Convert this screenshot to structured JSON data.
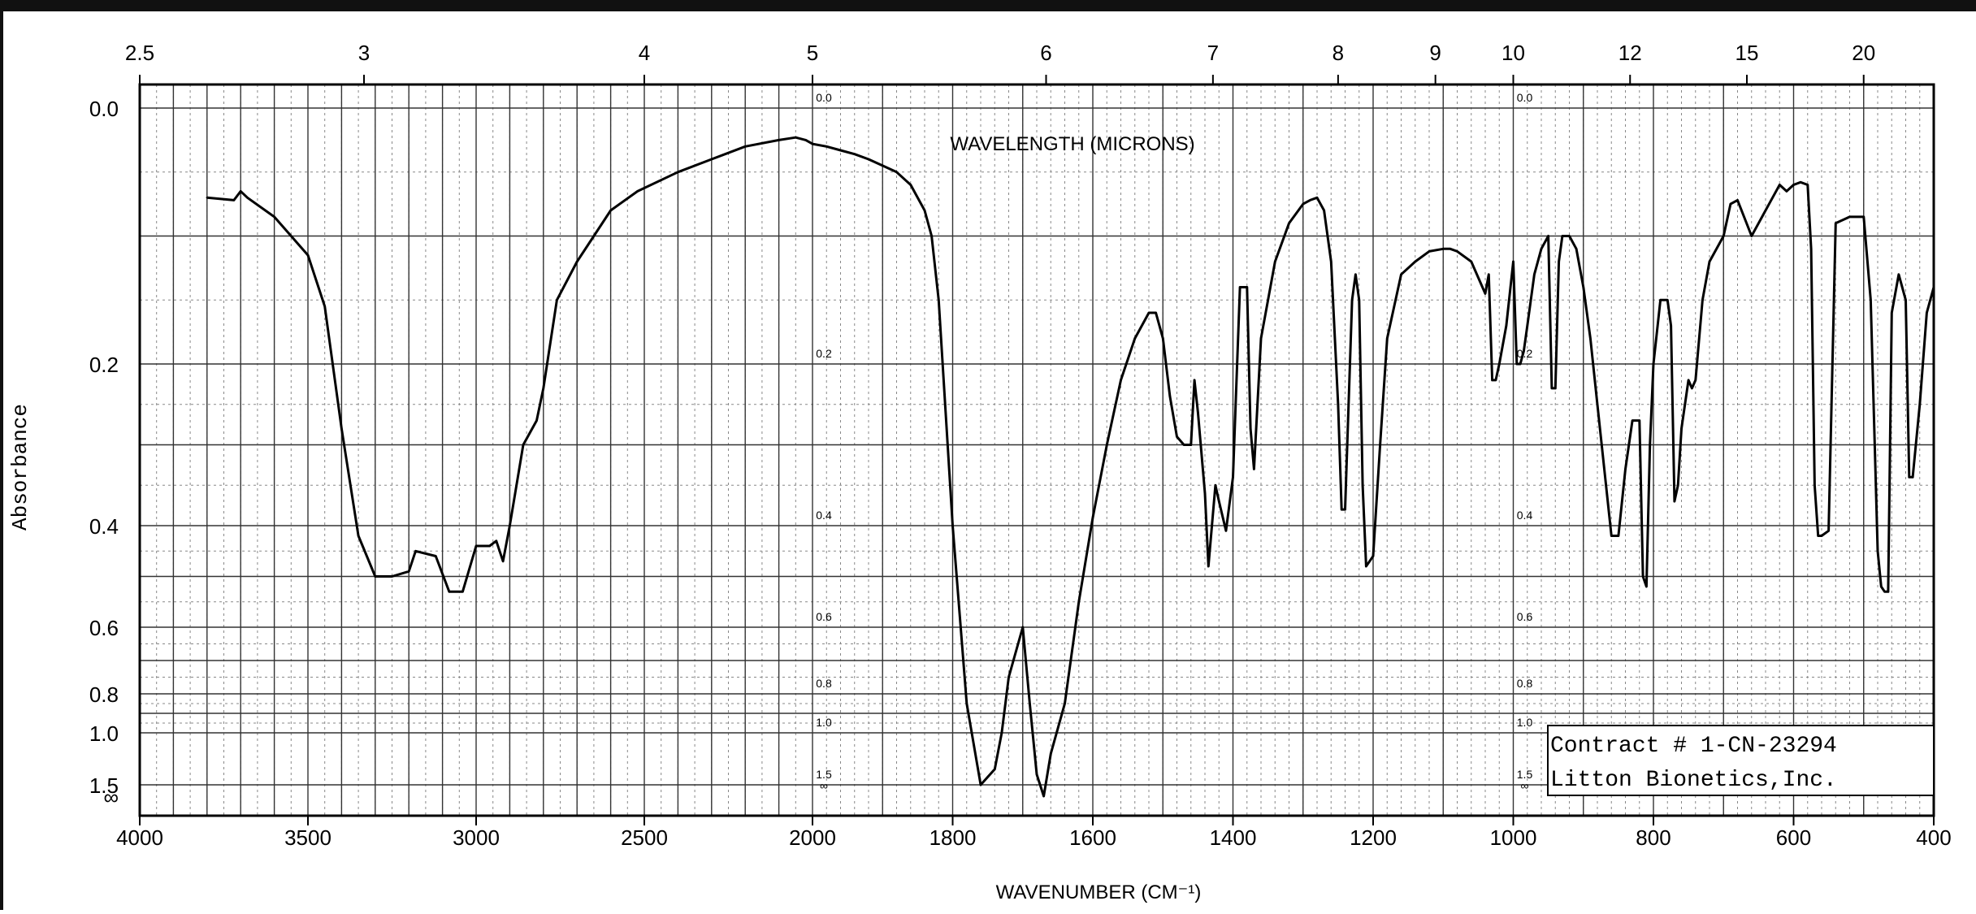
{
  "chart_data": {
    "type": "line",
    "title": "",
    "x_label": "WAVENUMBER (CM⁻¹)",
    "top_axis_label": "WAVELENGTH (MICRONS)",
    "y_label": "Absorbance",
    "x_range": [
      4000,
      400
    ],
    "x_scale": "piecewise-linear (4000–2000, 2000–400)",
    "y_range": [
      0,
      1.6
    ],
    "y_scale": "log10 transmittance",
    "x_tick_labels": [
      "4000",
      "3500",
      "3000",
      "2500",
      "2000",
      "1800",
      "1600",
      "1400",
      "1200",
      "1000",
      "800",
      "600",
      "400"
    ],
    "top_tick_labels": [
      "2.5",
      "3",
      "4",
      "5",
      "6",
      "7",
      "8",
      "9",
      "10",
      "12",
      "15",
      "20"
    ],
    "y_tick_labels": [
      "0.0",
      "0.2",
      "0.4",
      "0.6",
      "0.8",
      "1.0",
      "1.5",
      "∞"
    ],
    "inner_scale_labels": [
      "0.0",
      "0.2",
      "0.4",
      "0.6",
      "0.8",
      "1.0",
      "1.5",
      "∞"
    ],
    "grid": true,
    "annotation": {
      "line1": "Contract # 1-CN-23294",
      "line2": "Litton Bionetics,Inc."
    },
    "series": [
      {
        "x": [
          3800,
          3720,
          3700,
          3680,
          3600,
          3500,
          3450,
          3400,
          3350,
          3300,
          3250,
          3200,
          3180,
          3120,
          3080,
          3040,
          3000,
          2960,
          2940,
          2920,
          2900,
          2860,
          2820,
          2800,
          2760,
          2700,
          2600,
          2520,
          2400,
          2300,
          2200,
          2100,
          2050,
          2020,
          2000,
          1980,
          1960,
          1940,
          1920,
          1900,
          1880,
          1860,
          1840,
          1830,
          1820,
          1800,
          1780,
          1760,
          1740,
          1730,
          1720,
          1700,
          1690,
          1680,
          1670,
          1660,
          1640,
          1620,
          1600,
          1580,
          1560,
          1540,
          1520,
          1510,
          1500,
          1490,
          1480,
          1470,
          1460,
          1455,
          1450,
          1440,
          1435,
          1430,
          1425,
          1420,
          1410,
          1400,
          1390,
          1380,
          1375,
          1370,
          1360,
          1340,
          1320,
          1300,
          1290,
          1280,
          1270,
          1260,
          1250,
          1245,
          1240,
          1235,
          1230,
          1225,
          1220,
          1215,
          1210,
          1205,
          1200,
          1190,
          1180,
          1160,
          1140,
          1120,
          1100,
          1090,
          1080,
          1060,
          1040,
          1035,
          1030,
          1025,
          1020,
          1010,
          1000,
          995,
          990,
          985,
          980,
          970,
          960,
          950,
          945,
          940,
          935,
          930,
          920,
          910,
          900,
          890,
          880,
          860,
          850,
          840,
          830,
          820,
          815,
          810,
          805,
          800,
          790,
          780,
          775,
          770,
          765,
          760,
          750,
          745,
          740,
          730,
          720,
          700,
          690,
          680,
          660,
          640,
          630,
          620,
          610,
          600,
          590,
          580,
          575,
          570,
          565,
          560,
          550,
          540,
          520,
          500,
          490,
          480,
          475,
          470,
          465,
          460,
          450,
          440,
          435,
          430,
          420,
          410,
          400
        ],
        "y": [
          0.07,
          0.072,
          0.065,
          0.07,
          0.085,
          0.115,
          0.155,
          0.28,
          0.42,
          0.5,
          0.5,
          0.49,
          0.45,
          0.46,
          0.53,
          0.53,
          0.44,
          0.44,
          0.43,
          0.47,
          0.4,
          0.3,
          0.27,
          0.23,
          0.15,
          0.12,
          0.08,
          0.065,
          0.05,
          0.04,
          0.03,
          0.025,
          0.023,
          0.025,
          0.028,
          0.03,
          0.033,
          0.036,
          0.04,
          0.045,
          0.05,
          0.06,
          0.08,
          0.1,
          0.15,
          0.4,
          0.85,
          1.5,
          1.35,
          1.0,
          0.75,
          0.6,
          0.85,
          1.4,
          1.6,
          1.2,
          0.85,
          0.55,
          0.39,
          0.3,
          0.22,
          0.18,
          0.16,
          0.16,
          0.18,
          0.24,
          0.29,
          0.3,
          0.3,
          0.22,
          0.26,
          0.36,
          0.48,
          0.4,
          0.35,
          0.37,
          0.41,
          0.34,
          0.14,
          0.14,
          0.28,
          0.33,
          0.18,
          0.12,
          0.09,
          0.075,
          0.072,
          0.07,
          0.08,
          0.12,
          0.25,
          0.38,
          0.38,
          0.25,
          0.15,
          0.13,
          0.15,
          0.35,
          0.48,
          0.47,
          0.46,
          0.3,
          0.18,
          0.13,
          0.12,
          0.112,
          0.11,
          0.11,
          0.112,
          0.12,
          0.145,
          0.13,
          0.22,
          0.22,
          0.2,
          0.17,
          0.12,
          0.2,
          0.2,
          0.19,
          0.17,
          0.13,
          0.11,
          0.1,
          0.23,
          0.23,
          0.12,
          0.1,
          0.1,
          0.11,
          0.14,
          0.18,
          0.25,
          0.42,
          0.42,
          0.33,
          0.27,
          0.27,
          0.5,
          0.52,
          0.3,
          0.2,
          0.15,
          0.15,
          0.17,
          0.37,
          0.35,
          0.28,
          0.22,
          0.23,
          0.22,
          0.15,
          0.12,
          0.1,
          0.075,
          0.072,
          0.1,
          0.08,
          0.07,
          0.06,
          0.065,
          0.06,
          0.058,
          0.06,
          0.11,
          0.35,
          0.42,
          0.42,
          0.41,
          0.09,
          0.085,
          0.085,
          0.15,
          0.45,
          0.52,
          0.53,
          0.53,
          0.16,
          0.13,
          0.15,
          0.34,
          0.34,
          0.25,
          0.16,
          0.14
        ]
      }
    ]
  }
}
